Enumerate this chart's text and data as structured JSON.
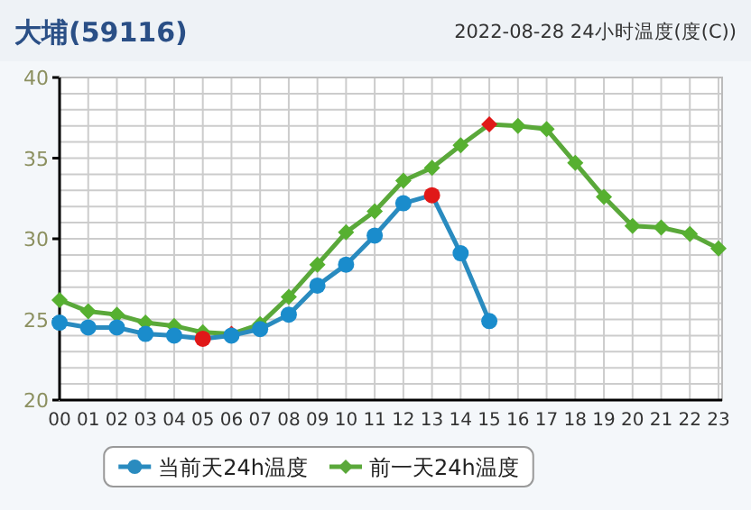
{
  "chart_data": {
    "type": "line",
    "title": "大埔(59116)",
    "subtitle": "2022-08-28 24小时温度(度(C))",
    "categories": [
      "00",
      "01",
      "02",
      "03",
      "04",
      "05",
      "06",
      "07",
      "08",
      "09",
      "10",
      "11",
      "12",
      "13",
      "14",
      "15",
      "16",
      "17",
      "18",
      "19",
      "20",
      "21",
      "22",
      "23"
    ],
    "series": [
      {
        "name": "当前天24h温度",
        "color": "#2a8bbf",
        "marker": "circle",
        "values": [
          24.8,
          24.5,
          24.5,
          24.1,
          24.0,
          23.8,
          24.0,
          24.4,
          25.3,
          27.1,
          28.4,
          30.2,
          32.2,
          32.7,
          29.1,
          24.9,
          null,
          null,
          null,
          null,
          null,
          null,
          null,
          null
        ],
        "colors": [
          "#1a8ccc",
          "#1a8ccc",
          "#1a8ccc",
          "#1a8ccc",
          "#1a8ccc",
          "#e01818",
          "#1a8ccc",
          "#1a8ccc",
          "#1a8ccc",
          "#1a8ccc",
          "#1a8ccc",
          "#1a8ccc",
          "#1a8ccc",
          "#e01818",
          "#1a8ccc",
          "#1a8ccc",
          null,
          null,
          null,
          null,
          null,
          null,
          null,
          null
        ]
      },
      {
        "name": "前一天24h温度",
        "color": "#5aa83a",
        "marker": "diamond",
        "values": [
          26.2,
          25.5,
          25.3,
          24.8,
          24.6,
          24.2,
          24.1,
          24.7,
          26.4,
          28.4,
          30.4,
          31.7,
          33.6,
          34.4,
          35.8,
          37.1,
          37.0,
          36.8,
          34.7,
          32.6,
          30.8,
          30.7,
          30.3,
          29.4
        ],
        "colors": [
          "#56b030",
          "#56b030",
          "#56b030",
          "#56b030",
          "#56b030",
          "#56b030",
          "#e01818",
          "#56b030",
          "#56b030",
          "#56b030",
          "#56b030",
          "#56b030",
          "#56b030",
          "#56b030",
          "#56b030",
          "#e01818",
          "#56b030",
          "#56b030",
          "#56b030",
          "#56b030",
          "#56b030",
          "#56b030",
          "#56b030",
          "#56b030"
        ]
      }
    ],
    "ylim": [
      20,
      40
    ],
    "yticks": [
      20,
      {
        "value": 21,
        "label": null
      },
      {
        "value": 22,
        "label": null
      },
      {
        "value": 23,
        "label": null
      },
      {
        "value": 24,
        "label": null
      },
      25,
      {
        "value": 26,
        "label": null
      },
      {
        "value": 27,
        "label": null
      },
      {
        "value": 28,
        "label": null
      },
      {
        "value": 29,
        "label": null
      },
      30,
      {
        "value": 31,
        "label": null
      },
      {
        "value": 32,
        "label": null
      },
      {
        "value": 33,
        "label": null
      },
      {
        "value": 34,
        "label": null
      },
      35,
      {
        "value": 36,
        "label": null
      },
      {
        "value": 37,
        "label": null
      },
      {
        "value": 38,
        "label": null
      },
      {
        "value": 39,
        "label": null
      },
      40
    ],
    "grid": true,
    "legend": "bottom"
  }
}
